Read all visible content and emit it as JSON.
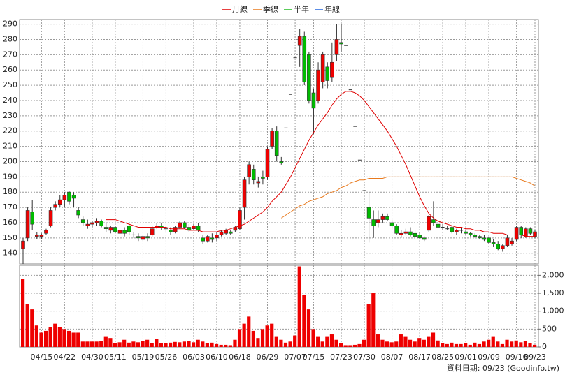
{
  "chart_data": {
    "type": "candlestick",
    "categories": [
      null,
      null,
      null,
      null,
      "04/15",
      null,
      null,
      null,
      null,
      "04/22",
      null,
      null,
      null,
      null,
      null,
      "04/30",
      null,
      null,
      null,
      null,
      "05/11",
      null,
      null,
      null,
      null,
      null,
      "05/19",
      null,
      null,
      null,
      null,
      "05/26",
      null,
      null,
      null,
      null,
      null,
      "06/03",
      null,
      null,
      null,
      null,
      "06/10",
      null,
      null,
      null,
      null,
      "06/18",
      null,
      null,
      null,
      null,
      null,
      "06/29",
      null,
      null,
      null,
      null,
      null,
      "07/07",
      null,
      null,
      null,
      "07/15",
      null,
      null,
      null,
      null,
      null,
      "07/23",
      null,
      null,
      null,
      null,
      "07/30",
      null,
      null,
      null,
      null,
      null,
      "08/07",
      null,
      null,
      null,
      null,
      null,
      "08/17",
      null,
      null,
      null,
      null,
      "08/25",
      null,
      null,
      null,
      null,
      "09/01",
      null,
      null,
      null,
      null,
      "09/09",
      null,
      null,
      null,
      null,
      null,
      "09/16",
      null,
      null,
      null,
      "09/23"
    ],
    "ohlc": [
      [
        143,
        150,
        133,
        148
      ],
      [
        150,
        170,
        148,
        168
      ],
      [
        167,
        175,
        155,
        159
      ],
      [
        151,
        154,
        149,
        152
      ],
      [
        151,
        153,
        149,
        152
      ],
      [
        153,
        156,
        152,
        155
      ],
      [
        158,
        170,
        157,
        168
      ],
      [
        170,
        174,
        168,
        172
      ],
      [
        172,
        178,
        170,
        175
      ],
      [
        175,
        180,
        170,
        178
      ],
      [
        180,
        181,
        172,
        174
      ],
      [
        178,
        180,
        170,
        176
      ],
      [
        168,
        170,
        163,
        165
      ],
      [
        162,
        164,
        158,
        160
      ],
      [
        158,
        162,
        156,
        159
      ],
      [
        159,
        161,
        157,
        160
      ],
      [
        160,
        163,
        158,
        161
      ],
      [
        161,
        162,
        157,
        158
      ],
      [
        157,
        160,
        154,
        156
      ],
      [
        155,
        158,
        153,
        157
      ],
      [
        157,
        158,
        153,
        154
      ],
      [
        153,
        156,
        152,
        155
      ],
      [
        155,
        157,
        151,
        153
      ],
      [
        158,
        159,
        152,
        154
      ],
      [
        152,
        154,
        150,
        152
      ],
      [
        151,
        153,
        148,
        150
      ],
      [
        149,
        152,
        148,
        151
      ],
      [
        151,
        153,
        148,
        150
      ],
      [
        152,
        158,
        151,
        156
      ],
      [
        157,
        160,
        156,
        158
      ],
      [
        158,
        160,
        155,
        157
      ],
      [
        156,
        158,
        154,
        156
      ],
      [
        155,
        157,
        152,
        154
      ],
      [
        154,
        158,
        153,
        157
      ],
      [
        157,
        161,
        156,
        160
      ],
      [
        160,
        161,
        156,
        157
      ],
      [
        157,
        159,
        154,
        155
      ],
      [
        156,
        159,
        155,
        158
      ],
      [
        158,
        160,
        154,
        155
      ],
      [
        150,
        152,
        146,
        148
      ],
      [
        148,
        152,
        147,
        151
      ],
      [
        150,
        153,
        147,
        149
      ],
      [
        150,
        154,
        148,
        152
      ],
      [
        152,
        155,
        151,
        154
      ],
      [
        153,
        156,
        152,
        155
      ],
      [
        154,
        155,
        152,
        153
      ],
      [
        155,
        158,
        154,
        157
      ],
      [
        156,
        170,
        155,
        168
      ],
      [
        170,
        190,
        162,
        188
      ],
      [
        190,
        200,
        185,
        198
      ],
      [
        195,
        198,
        185,
        188
      ],
      [
        186,
        190,
        183,
        187
      ],
      [
        190,
        194,
        185,
        189
      ],
      [
        190,
        210,
        188,
        208
      ],
      [
        210,
        222,
        208,
        220
      ],
      [
        220,
        223,
        200,
        204
      ],
      [
        200,
        203,
        198,
        199
      ],
      [
        222,
        222,
        222,
        222
      ],
      [
        244,
        244,
        244,
        244
      ],
      [
        268,
        268,
        268,
        268
      ],
      [
        276,
        287,
        262,
        282
      ],
      [
        282,
        285,
        250,
        252
      ],
      [
        270,
        272,
        238,
        240
      ],
      [
        245,
        248,
        218,
        235
      ],
      [
        240,
        265,
        238,
        260
      ],
      [
        252,
        272,
        248,
        270
      ],
      [
        262,
        265,
        248,
        253
      ],
      [
        255,
        278,
        252,
        265
      ],
      [
        270,
        290,
        266,
        280
      ],
      [
        278,
        290,
        272,
        277
      ],
      [
        276,
        276,
        276,
        276
      ],
      [
        247,
        247,
        247,
        247
      ],
      [
        223,
        223,
        223,
        223
      ],
      [
        201,
        201,
        201,
        201
      ],
      [
        181,
        181,
        181,
        181
      ],
      [
        170,
        180,
        147,
        163
      ],
      [
        162,
        168,
        150,
        158
      ],
      [
        160,
        168,
        157,
        162
      ],
      [
        162,
        166,
        160,
        164
      ],
      [
        164,
        166,
        161,
        162
      ],
      [
        160,
        162,
        156,
        158
      ],
      [
        158,
        159,
        152,
        153
      ],
      [
        152,
        155,
        150,
        153
      ],
      [
        153,
        156,
        152,
        154
      ],
      [
        154,
        157,
        151,
        152
      ],
      [
        153,
        155,
        150,
        151
      ],
      [
        152,
        154,
        149,
        150
      ],
      [
        150,
        151,
        148,
        149
      ],
      [
        155,
        165,
        154,
        164
      ],
      [
        162,
        174,
        158,
        160
      ],
      [
        159,
        160,
        156,
        157
      ],
      [
        157,
        159,
        155,
        157
      ],
      [
        156,
        158,
        155,
        156
      ],
      [
        157,
        158,
        153,
        154
      ],
      [
        154,
        156,
        152,
        155
      ],
      [
        155,
        157,
        153,
        155
      ],
      [
        154,
        155,
        152,
        153
      ],
      [
        153,
        154,
        151,
        152
      ],
      [
        152,
        153,
        150,
        151
      ],
      [
        151,
        152,
        149,
        150
      ],
      [
        150,
        152,
        148,
        149
      ],
      [
        150,
        151,
        146,
        147
      ],
      [
        147,
        149,
        144,
        146
      ],
      [
        146,
        148,
        142,
        143
      ],
      [
        143,
        146,
        141,
        145
      ],
      [
        145,
        152,
        144,
        150
      ],
      [
        146,
        150,
        145,
        148
      ],
      [
        149,
        158,
        148,
        157
      ],
      [
        157,
        158,
        150,
        152
      ],
      [
        151,
        157,
        150,
        156
      ],
      [
        156,
        157,
        152,
        153
      ],
      [
        151,
        155,
        150,
        154
      ]
    ],
    "up_color": "#ee0000",
    "down_color": "#00bb00",
    "series": [
      {
        "name": "月線",
        "color": "#e00000",
        "values": [
          null,
          null,
          null,
          null,
          null,
          null,
          null,
          null,
          null,
          null,
          null,
          null,
          null,
          null,
          null,
          null,
          null,
          null,
          162,
          162,
          162,
          161,
          160,
          159,
          158,
          157,
          157,
          157,
          157,
          157,
          157,
          157,
          156,
          156,
          156,
          156,
          155,
          155,
          155,
          154,
          154,
          154,
          154,
          155,
          155,
          156,
          157,
          158,
          159,
          161,
          163,
          165,
          167,
          170,
          174,
          177,
          180,
          185,
          190,
          196,
          202,
          208,
          214,
          219,
          224,
          228,
          232,
          237,
          241,
          244,
          246,
          246,
          245,
          243,
          240,
          236,
          232,
          228,
          224,
          220,
          215,
          210,
          204,
          198,
          191,
          184,
          177,
          171,
          166,
          163,
          161,
          160,
          159,
          158,
          157,
          157,
          156,
          156,
          155,
          155,
          154,
          154,
          153,
          153,
          153,
          152,
          152,
          152,
          152,
          151,
          151,
          151
        ]
      },
      {
        "name": "季線",
        "color": "#e87a1e",
        "values": [
          null,
          null,
          null,
          null,
          null,
          null,
          null,
          null,
          null,
          null,
          null,
          null,
          null,
          null,
          null,
          null,
          null,
          null,
          null,
          null,
          null,
          null,
          null,
          null,
          null,
          null,
          null,
          null,
          null,
          null,
          null,
          null,
          null,
          null,
          null,
          null,
          null,
          null,
          null,
          null,
          null,
          null,
          null,
          null,
          null,
          null,
          null,
          null,
          null,
          null,
          null,
          null,
          null,
          null,
          null,
          null,
          163,
          165,
          167,
          169,
          171,
          172,
          174,
          175,
          176,
          177,
          179,
          180,
          181,
          183,
          184,
          186,
          187,
          188,
          188,
          189,
          189,
          189,
          189,
          190,
          190,
          190,
          190,
          190,
          190,
          190,
          190,
          190,
          190,
          190,
          190,
          190,
          190,
          190,
          190,
          190,
          190,
          190,
          190,
          190,
          190,
          190,
          190,
          190,
          190,
          190,
          190,
          189,
          188,
          187,
          186,
          184
        ]
      },
      {
        "name": "半年",
        "color": "#22bb22"
      },
      {
        "name": "年線",
        "color": "#2266dd"
      }
    ],
    "ylim": [
      133,
      293
    ],
    "yticks": [
      140,
      150,
      160,
      170,
      180,
      190,
      200,
      210,
      220,
      230,
      240,
      250,
      260,
      270,
      280,
      290
    ],
    "volume": {
      "color": "#ee0000",
      "ylim": [
        0,
        2280
      ],
      "yticks": [
        0,
        500,
        {
          "value": 1000,
          "label": "1,000"
        },
        {
          "value": 1500,
          "label": "1,500"
        },
        {
          "value": 2000,
          "label": "2,000"
        }
      ],
      "values": [
        1900,
        1200,
        1050,
        600,
        400,
        450,
        550,
        650,
        550,
        500,
        450,
        400,
        400,
        150,
        150,
        150,
        150,
        170,
        300,
        250,
        110,
        130,
        200,
        120,
        150,
        130,
        170,
        200,
        110,
        220,
        110,
        100,
        120,
        140,
        130,
        150,
        160,
        130,
        200,
        150,
        100,
        120,
        80,
        60,
        60,
        50,
        200,
        500,
        650,
        850,
        450,
        250,
        500,
        600,
        650,
        300,
        200,
        120,
        150,
        320,
        2250,
        1450,
        1050,
        500,
        300,
        150,
        300,
        350,
        200,
        100,
        50,
        50,
        60,
        80,
        200,
        1200,
        1500,
        350,
        200,
        150,
        130,
        150,
        350,
        300,
        200,
        150,
        250,
        200,
        300,
        400,
        180,
        100,
        80,
        120,
        80,
        80,
        100,
        60,
        120,
        80,
        150,
        200,
        300,
        150,
        80,
        200,
        150,
        180,
        130,
        160,
        100,
        60
      ]
    },
    "grid": true,
    "footer": "資料日期: 09/23  (Goodinfo.tw)"
  }
}
